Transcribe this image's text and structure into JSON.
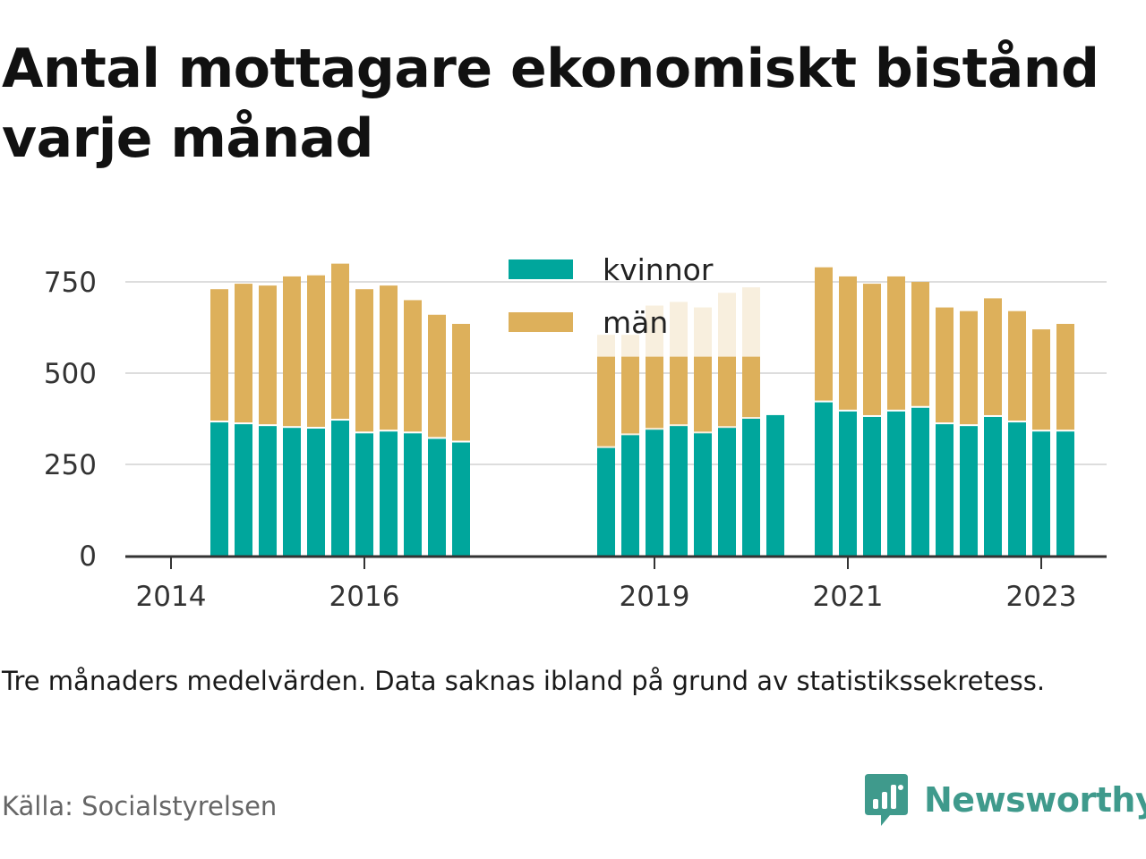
{
  "title": "Antal mottagare ekonomiskt bistånd varje månad",
  "note": "Tre månaders medelvärden. Data saknas ibland på grund av statistikssekretess.",
  "source": "Källa: Socialstyrelsen",
  "brand": {
    "name": "Newsworthy",
    "logo_icon": "newsworthy-chart-bubble-icon",
    "color": "#3f9a8c"
  },
  "colors": {
    "kvinnor": "#00a69c",
    "man": "#ddb05b",
    "grid": "#dddddd",
    "axis": "#333333"
  },
  "chart_data": {
    "type": "bar",
    "stacked": true,
    "x_tick_labels": [
      "2014",
      "2016",
      "2019",
      "2021",
      "2023"
    ],
    "y_tick_labels": [
      "0",
      "250",
      "500",
      "750"
    ],
    "ylim": [
      0,
      800
    ],
    "grid": true,
    "legend_position": "top-center",
    "x": [
      "2014-07",
      "2014-10",
      "2015-01",
      "2015-04",
      "2015-07",
      "2015-10",
      "2016-01",
      "2016-04",
      "2016-07",
      "2016-10",
      "2017-01",
      "2018-07",
      "2018-10",
      "2019-01",
      "2019-04",
      "2019-07",
      "2019-10",
      "2020-01",
      "2020-04",
      "2020-07",
      "2020-10",
      "2021-01",
      "2021-04",
      "2021-07",
      "2021-10",
      "2022-01",
      "2022-04",
      "2022-07",
      "2022-10",
      "2023-01",
      "2023-04"
    ],
    "series": [
      {
        "name": "kvinnor",
        "values": [
          365,
          360,
          355,
          350,
          348,
          370,
          335,
          340,
          335,
          320,
          310,
          295,
          330,
          345,
          355,
          335,
          350,
          375,
          385,
          null,
          420,
          395,
          380,
          395,
          405,
          360,
          355,
          380,
          365,
          340,
          340
        ]
      },
      {
        "name": "män",
        "values": [
          360,
          380,
          380,
          410,
          415,
          425,
          390,
          395,
          360,
          335,
          320,
          null,
          null,
          null,
          null,
          null,
          null,
          null,
          null,
          null,
          365,
          365,
          360,
          365,
          340,
          315,
          310,
          320,
          300,
          275,
          290
        ]
      }
    ],
    "faded_bars": {
      "x": [
        "2018-07",
        "2018-10",
        "2019-01",
        "2019-04",
        "2019-07",
        "2019-10",
        "2020-01"
      ],
      "totals": [
        605,
        605,
        685,
        695,
        680,
        720,
        735
      ],
      "visible_man_top": 545
    }
  }
}
